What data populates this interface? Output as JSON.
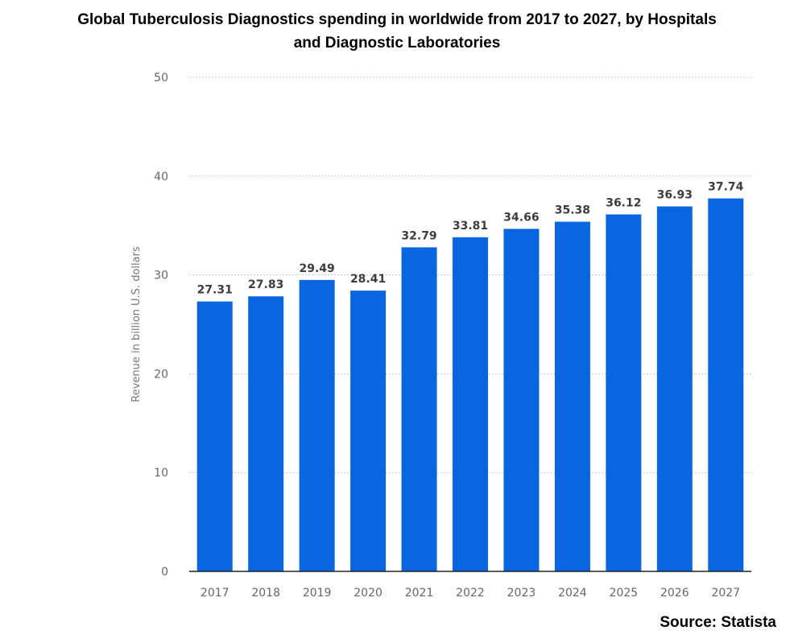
{
  "chart_data": {
    "type": "bar",
    "title_lines": [
      "Global Tuberculosis Diagnostics spending in worldwide from 2017 to 2027, by Hospitals",
      "and Diagnostic Laboratories"
    ],
    "categories": [
      "2017",
      "2018",
      "2019",
      "2020",
      "2021",
      "2022",
      "2023",
      "2024",
      "2025",
      "2026",
      "2027"
    ],
    "values": [
      27.31,
      27.83,
      29.49,
      28.41,
      32.79,
      33.81,
      34.66,
      35.38,
      36.12,
      36.93,
      37.74
    ],
    "value_labels": [
      "27.31",
      "27.83",
      "29.49",
      "28.41",
      "32.79",
      "33.81",
      "34.66",
      "35.38",
      "36.12",
      "36.93",
      "37.74"
    ],
    "xlabel": "",
    "ylabel": "Revenue in billion U.S. dollars",
    "ylim": [
      0,
      50
    ],
    "yticks": [
      0,
      10,
      20,
      30,
      40,
      50
    ],
    "grid": true,
    "bar_color": "#0a65e0",
    "source": "Source: Statista"
  }
}
